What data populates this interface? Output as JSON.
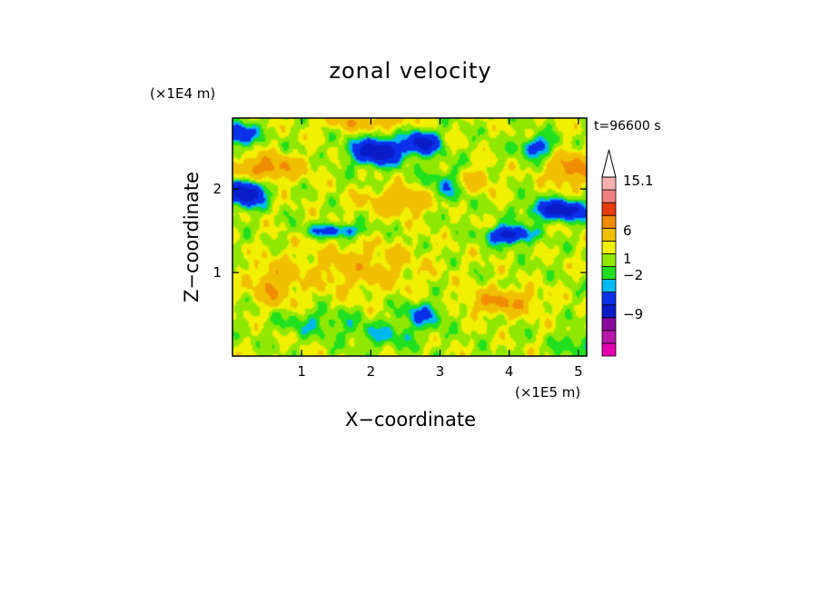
{
  "chart_data": {
    "type": "heatmap",
    "title": "zonal velocity",
    "xlabel": "X−coordinate",
    "ylabel": "Z−coordinate",
    "x_scale_label": "(×1E5 m)",
    "y_scale_label": "(×1E4 m)",
    "time_label": "t=96600 s",
    "xlim": [
      0.0,
      5.12
    ],
    "ylim": [
      0.0,
      2.85
    ],
    "x_ticks": [
      {
        "value": 1,
        "label": "1"
      },
      {
        "value": 2,
        "label": "2"
      },
      {
        "value": 3,
        "label": "3"
      },
      {
        "value": 4,
        "label": "4"
      },
      {
        "value": 5,
        "label": "5"
      }
    ],
    "y_ticks": [
      {
        "value": 1,
        "label": "1"
      },
      {
        "value": 2,
        "label": "2"
      }
    ],
    "colorbar": {
      "colors": [
        "#e400ae",
        "#b816a8",
        "#8a0aa0",
        "#0a1cc8",
        "#0a30e8",
        "#00b8f0",
        "#20e020",
        "#90e800",
        "#f0f000",
        "#f0c000",
        "#f08c00",
        "#e83c0c",
        "#f08080",
        "#f6b0b0",
        "#ffffff"
      ],
      "labels": [
        {
          "value": -9,
          "label": "−9"
        },
        {
          "value": -2,
          "label": "−2"
        },
        {
          "value": 1,
          "label": "1"
        },
        {
          "value": 6,
          "label": "6"
        },
        {
          "value": 15.1,
          "label": "15.1"
        }
      ]
    },
    "features": [
      {
        "x": 2.1,
        "z": 2.45,
        "u": -8,
        "sx": 0.35,
        "sz": 0.15
      },
      {
        "x": 2.75,
        "z": 2.55,
        "u": -7,
        "sx": 0.22,
        "sz": 0.13
      },
      {
        "x": 4.4,
        "z": 2.5,
        "u": -4,
        "sx": 0.25,
        "sz": 0.12
      },
      {
        "x": 4.75,
        "z": 1.75,
        "u": -7,
        "sx": 0.4,
        "sz": 0.12
      },
      {
        "x": 4.0,
        "z": 1.45,
        "u": -7,
        "sx": 0.28,
        "sz": 0.1
      },
      {
        "x": 0.2,
        "z": 1.95,
        "u": -8,
        "sx": 0.25,
        "sz": 0.15
      },
      {
        "x": 0.1,
        "z": 2.65,
        "u": -6,
        "sx": 0.22,
        "sz": 0.12
      },
      {
        "x": 1.5,
        "z": 1.5,
        "u": -4,
        "sx": 0.4,
        "sz": 0.08
      },
      {
        "x": 2.75,
        "z": 0.5,
        "u": -3,
        "sx": 0.3,
        "sz": 0.15
      },
      {
        "x": 3.1,
        "z": 2.0,
        "u": -2.5,
        "sx": 0.3,
        "sz": 0.25
      },
      {
        "x": 0.5,
        "z": 2.25,
        "u": 4,
        "sx": 0.5,
        "sz": 0.15
      },
      {
        "x": 4.9,
        "z": 2.25,
        "u": 4,
        "sx": 0.3,
        "sz": 0.2
      },
      {
        "x": 3.9,
        "z": 0.65,
        "u": 3.5,
        "sx": 0.5,
        "sz": 0.15
      },
      {
        "x": 2.5,
        "z": 1.85,
        "u": 3,
        "sx": 0.6,
        "sz": 0.15
      },
      {
        "x": 1.9,
        "z": 2.8,
        "u": 2.5,
        "sx": 0.6,
        "sz": 0.1
      },
      {
        "x": 0.6,
        "z": 0.85,
        "u": 3,
        "sx": 0.3,
        "sz": 0.25
      },
      {
        "x": 3.5,
        "z": 2.1,
        "u": 2.5,
        "sx": 0.25,
        "sz": 0.15
      },
      {
        "x": 1.8,
        "z": 1.05,
        "u": 2,
        "sx": 0.9,
        "sz": 0.3
      },
      {
        "x": 2.2,
        "z": 0.25,
        "u": -1.8,
        "sx": 0.5,
        "sz": 0.15
      },
      {
        "x": 5.0,
        "z": 0.15,
        "u": -1.8,
        "sx": 0.3,
        "sz": 0.15
      },
      {
        "x": 1.2,
        "z": 0.4,
        "u": -1.6,
        "sx": 0.6,
        "sz": 0.15
      }
    ]
  }
}
